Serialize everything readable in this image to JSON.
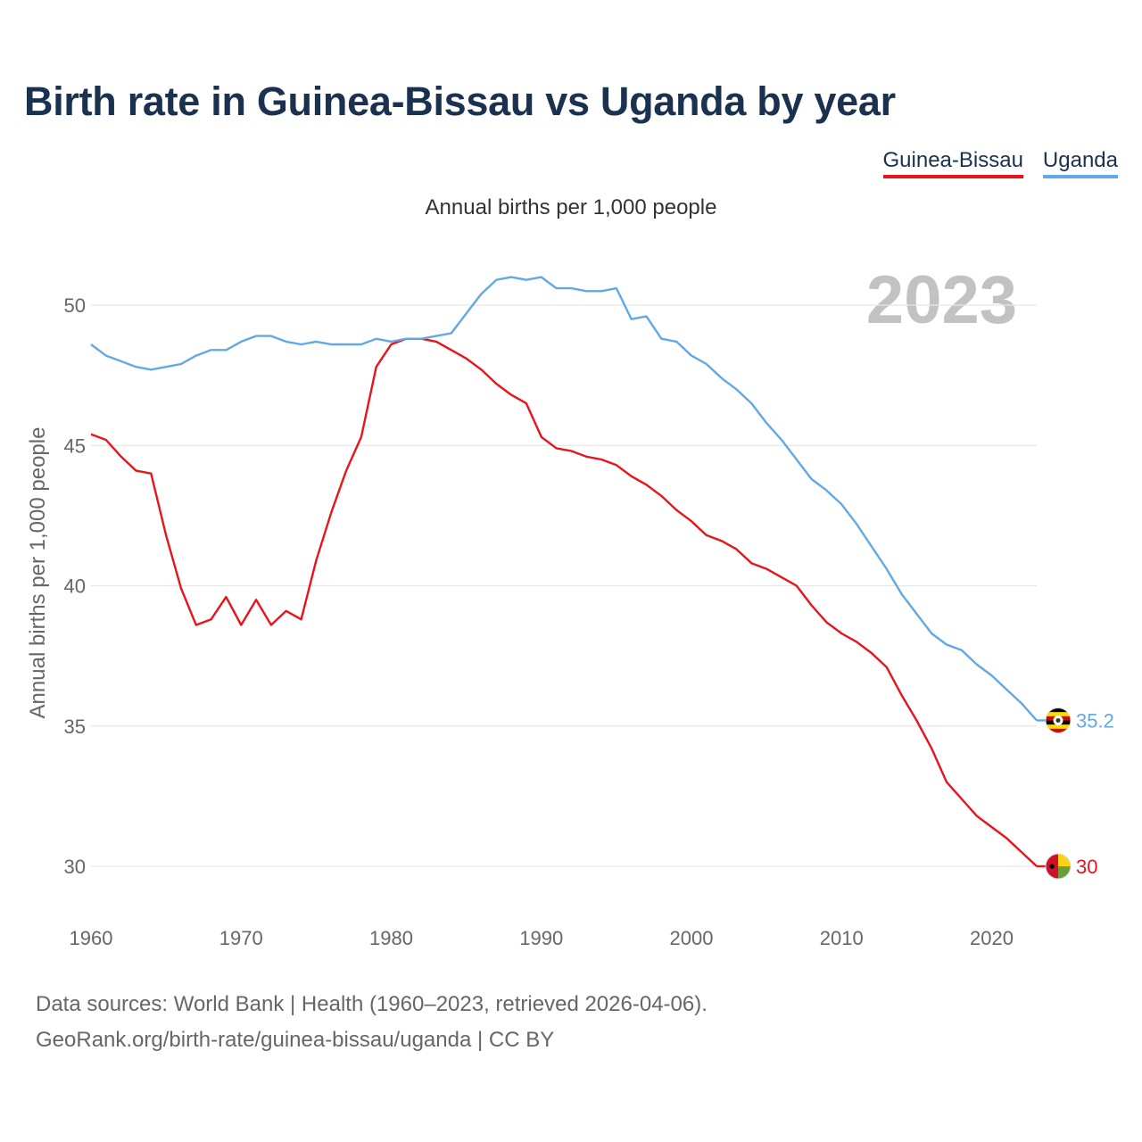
{
  "colors": {
    "guinea_bissau": "#e8141a",
    "uganda": "#62a8e5",
    "title": "#1a3150",
    "axis_text": "#666666",
    "grid": "#e6e6e6",
    "year_watermark": "#c2c2c2"
  },
  "legend": {
    "items": [
      {
        "label": "Guinea-Bissau"
      },
      {
        "label": "Uganda"
      }
    ]
  },
  "flags": {
    "guinea_bissau": "guinea-bissau-flag-icon",
    "uganda": "uganda-flag-icon"
  },
  "sources": {
    "line1": "Data sources: World Bank | Health (1960–2023, retrieved 2026-04-06).",
    "line2": "GeoRank.org/birth-rate/guinea-bissau/uganda | CC BY"
  },
  "chart_data": {
    "type": "line",
    "title": "Birth rate in Guinea-Bissau vs Uganda by year",
    "subtitle": "Annual births per 1,000 people",
    "ylabel": "Annual births per 1,000 people",
    "xlabel": "",
    "highlight_year": "2023",
    "xlim": [
      1960,
      2023
    ],
    "ylim": [
      28,
      53
    ],
    "x_ticks": [
      1960,
      1970,
      1980,
      1990,
      2000,
      2010,
      2020
    ],
    "y_ticks": [
      30,
      35,
      40,
      45,
      50
    ],
    "x": [
      1960,
      1961,
      1962,
      1963,
      1964,
      1965,
      1966,
      1967,
      1968,
      1969,
      1970,
      1971,
      1972,
      1973,
      1974,
      1975,
      1976,
      1977,
      1978,
      1979,
      1980,
      1981,
      1982,
      1983,
      1984,
      1985,
      1986,
      1987,
      1988,
      1989,
      1990,
      1991,
      1992,
      1993,
      1994,
      1995,
      1996,
      1997,
      1998,
      1999,
      2000,
      2001,
      2002,
      2003,
      2004,
      2005,
      2006,
      2007,
      2008,
      2009,
      2010,
      2011,
      2012,
      2013,
      2014,
      2015,
      2016,
      2017,
      2018,
      2019,
      2020,
      2021,
      2022,
      2023
    ],
    "series": [
      {
        "name": "Guinea-Bissau",
        "end_label": "30",
        "values": [
          45.4,
          45.2,
          44.6,
          44.1,
          44.0,
          41.8,
          39.9,
          38.6,
          38.8,
          39.6,
          38.6,
          39.5,
          38.6,
          39.1,
          38.8,
          40.9,
          42.6,
          44.1,
          45.3,
          47.8,
          48.6,
          48.8,
          48.8,
          48.7,
          48.4,
          48.1,
          47.7,
          47.2,
          46.8,
          46.5,
          45.3,
          44.9,
          44.8,
          44.6,
          44.5,
          44.3,
          43.9,
          43.6,
          43.2,
          42.7,
          42.3,
          41.8,
          41.6,
          41.3,
          40.8,
          40.6,
          40.3,
          40.0,
          39.3,
          38.7,
          38.3,
          38.0,
          37.6,
          37.1,
          36.1,
          35.2,
          34.2,
          33.0,
          32.4,
          31.8,
          31.4,
          31.0,
          30.5,
          30.0
        ]
      },
      {
        "name": "Uganda",
        "end_label": "35.2",
        "values": [
          48.6,
          48.2,
          48.0,
          47.8,
          47.7,
          47.8,
          47.9,
          48.2,
          48.4,
          48.4,
          48.7,
          48.9,
          48.9,
          48.7,
          48.6,
          48.7,
          48.6,
          48.6,
          48.6,
          48.8,
          48.7,
          48.8,
          48.8,
          48.9,
          49.0,
          49.7,
          50.4,
          50.9,
          51.0,
          50.9,
          51.0,
          50.6,
          50.6,
          50.5,
          50.5,
          50.6,
          49.5,
          49.6,
          48.8,
          48.7,
          48.2,
          47.9,
          47.4,
          47.0,
          46.5,
          45.8,
          45.2,
          44.5,
          43.8,
          43.4,
          42.9,
          42.2,
          41.4,
          40.6,
          39.7,
          39.0,
          38.3,
          37.9,
          37.7,
          37.2,
          36.8,
          36.3,
          35.8,
          35.2
        ]
      }
    ]
  }
}
